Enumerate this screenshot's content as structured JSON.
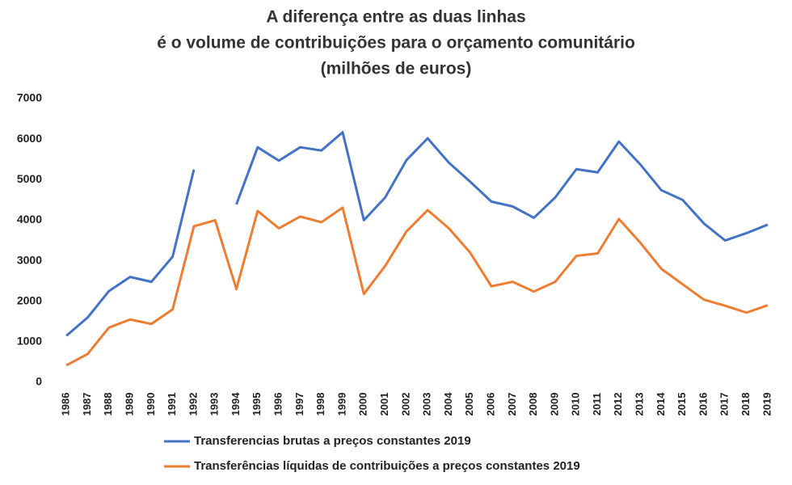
{
  "chart_data": {
    "type": "line",
    "title": [
      "A diferença entre as duas linhas",
      "é o volume de contribuições para o orçamento comunitário",
      "(milhões de euros)"
    ],
    "categories": [
      "1986",
      "1987",
      "1988",
      "1989",
      "1990",
      "1991",
      "1992",
      "1993",
      "1994",
      "1995",
      "1996",
      "1997",
      "1998",
      "1999",
      "2000",
      "2001",
      "2002",
      "2003",
      "2004",
      "2005",
      "2006",
      "2007",
      "2008",
      "2009",
      "2010",
      "2011",
      "2012",
      "2013",
      "2014",
      "2015",
      "2016",
      "2017",
      "2018",
      "2019"
    ],
    "series": [
      {
        "name": "Transferencias brutas a preços constantes 2019",
        "color": "#4472c4",
        "values": [
          1150,
          1600,
          2250,
          2600,
          2480,
          3100,
          5250,
          null,
          4390,
          5800,
          5470,
          5800,
          5720,
          6170,
          4000,
          4560,
          5480,
          6020,
          5420,
          4950,
          4460,
          4340,
          4060,
          4560,
          5260,
          5180,
          5940,
          5380,
          4740,
          4500,
          3920,
          3500,
          3680,
          3890
        ]
      },
      {
        "name": "Transferências líquidas de contribuições a preços constantes 2019",
        "color": "#ed7d31",
        "values": [
          420,
          700,
          1350,
          1550,
          1440,
          1800,
          3850,
          4000,
          2300,
          4230,
          3800,
          4090,
          3950,
          4310,
          2180,
          2870,
          3720,
          4250,
          3800,
          3200,
          2370,
          2480,
          2240,
          2480,
          3120,
          3180,
          4030,
          3450,
          2800,
          2420,
          2040,
          1890,
          1720,
          1900
        ]
      }
    ],
    "ylim": [
      0,
      7000
    ],
    "yticks": [
      0,
      1000,
      2000,
      3000,
      4000,
      5000,
      6000,
      7000
    ],
    "grid": false
  }
}
